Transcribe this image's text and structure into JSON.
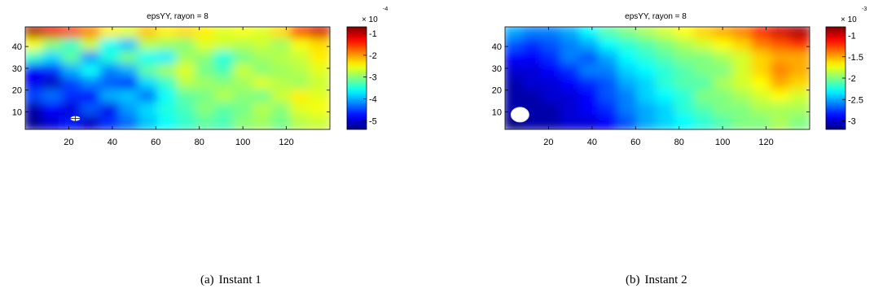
{
  "figure": {
    "captions": [
      {
        "letter": "(a)",
        "text": "Instant 1"
      },
      {
        "letter": "(b)",
        "text": "Instant 2"
      }
    ]
  },
  "chart_data": [
    {
      "type": "heatmap",
      "title": "epsYY, rayon = 8",
      "xlabel": "",
      "ylabel": "",
      "xlim": [
        0,
        140
      ],
      "ylim": [
        2,
        49
      ],
      "xticks": [
        20,
        40,
        60,
        80,
        100,
        120
      ],
      "yticks": [
        10,
        20,
        30,
        40
      ],
      "colormap": "jet",
      "colorbar": {
        "range": [
          -5.4,
          -0.7
        ],
        "ticks": [
          -1,
          -2,
          -3,
          -4,
          -5
        ],
        "tick_labels": [
          "-1",
          "-2",
          "-3",
          "-4",
          "-5"
        ],
        "multiplier": "× 10",
        "exponent": "-4"
      },
      "grid": [
        [
          -0.9,
          -1.2,
          -1.6,
          -1.9,
          -2.4,
          -2.6,
          -2.2,
          -2.4,
          -2.3,
          -2.4,
          -2.6,
          -2.5,
          -2.6,
          -2.3,
          -1.6,
          -1.1
        ],
        [
          -2.5,
          -3.0,
          -3.4,
          -2.7,
          -3.6,
          -3.9,
          -2.8,
          -2.9,
          -3.0,
          -2.6,
          -2.7,
          -2.8,
          -2.7,
          -2.9,
          -2.5,
          -2.3
        ],
        [
          -3.4,
          -3.8,
          -3.2,
          -4.1,
          -3.5,
          -3.1,
          -3.6,
          -3.7,
          -2.9,
          -3.0,
          -3.5,
          -3.1,
          -2.9,
          -2.8,
          -2.7,
          -2.4
        ],
        [
          -4.8,
          -4.6,
          -4.0,
          -3.6,
          -4.2,
          -4.0,
          -3.2,
          -2.9,
          -2.6,
          -3.1,
          -3.3,
          -2.7,
          -3.0,
          -2.9,
          -2.8,
          -2.6
        ],
        [
          -4.9,
          -5.1,
          -4.5,
          -4.2,
          -4.4,
          -4.6,
          -3.8,
          -3.4,
          -2.8,
          -2.9,
          -3.0,
          -2.9,
          -2.6,
          -2.8,
          -2.9,
          -2.7
        ],
        [
          -4.5,
          -4.3,
          -4.6,
          -4.8,
          -4.0,
          -3.9,
          -4.3,
          -3.6,
          -3.2,
          -3.1,
          -2.8,
          -3.0,
          -3.1,
          -2.7,
          -2.4,
          -2.6
        ],
        [
          -5.2,
          -4.8,
          -5.0,
          -4.4,
          -4.9,
          -4.1,
          -3.8,
          -3.5,
          -3.3,
          -3.0,
          -3.2,
          -3.1,
          -2.8,
          -3.0,
          -2.6,
          -2.5
        ],
        [
          -5.3,
          -5.0,
          -4.7,
          -5.1,
          -4.6,
          -4.3,
          -3.9,
          -3.6,
          -3.4,
          -3.2,
          -3.3,
          -3.0,
          -2.9,
          -3.1,
          -2.8,
          -2.7
        ]
      ],
      "marker": {
        "x": 23,
        "y": 7,
        "shape": "crosshair"
      }
    },
    {
      "type": "heatmap",
      "title": "epsYY, rayon = 8",
      "xlabel": "",
      "ylabel": "",
      "xlim": [
        0,
        140
      ],
      "ylim": [
        2,
        49
      ],
      "xticks": [
        20,
        40,
        60,
        80,
        100,
        120
      ],
      "yticks": [
        10,
        20,
        30,
        40
      ],
      "colormap": "jet",
      "colorbar": {
        "range": [
          -3.2,
          -0.8
        ],
        "ticks": [
          -1,
          -1.5,
          -2,
          -2.5,
          -3
        ],
        "tick_labels": [
          "-1",
          "-1.5",
          "-2",
          "-2.5",
          "-3"
        ],
        "multiplier": "× 10",
        "exponent": "-3"
      },
      "grid": [
        [
          -2.5,
          -2.6,
          -2.6,
          -2.5,
          -2.3,
          -2.1,
          -2.0,
          -1.9,
          -1.8,
          -1.7,
          -1.6,
          -1.5,
          -1.4,
          -1.2,
          -1.0,
          -0.9
        ],
        [
          -2.7,
          -2.8,
          -2.7,
          -2.6,
          -2.5,
          -2.3,
          -2.2,
          -2.1,
          -2.0,
          -1.9,
          -1.8,
          -1.7,
          -1.6,
          -1.4,
          -1.3,
          -1.2
        ],
        [
          -2.9,
          -2.9,
          -2.8,
          -2.6,
          -2.7,
          -2.5,
          -2.3,
          -2.2,
          -2.1,
          -2.0,
          -2.0,
          -1.9,
          -1.8,
          -1.6,
          -1.5,
          -1.5
        ],
        [
          -3.0,
          -3.0,
          -2.9,
          -2.8,
          -2.6,
          -2.6,
          -2.4,
          -2.3,
          -2.2,
          -2.1,
          -2.0,
          -2.0,
          -1.8,
          -1.6,
          -1.4,
          -1.5
        ],
        [
          -3.1,
          -3.0,
          -3.0,
          -2.9,
          -2.8,
          -2.7,
          -2.5,
          -2.4,
          -2.2,
          -2.1,
          -2.1,
          -1.9,
          -1.8,
          -1.7,
          -1.5,
          -1.6
        ],
        [
          -3.1,
          -3.1,
          -3.0,
          -3.0,
          -2.9,
          -2.7,
          -2.6,
          -2.4,
          -2.3,
          -2.2,
          -2.0,
          -2.0,
          -1.9,
          -1.8,
          -1.7,
          -1.8
        ],
        [
          -3.1,
          -3.1,
          -3.1,
          -3.0,
          -2.9,
          -2.8,
          -2.6,
          -2.5,
          -2.4,
          -2.2,
          -2.1,
          -2.0,
          -2.0,
          -1.9,
          -1.9,
          -1.9
        ],
        [
          -3.2,
          -3.1,
          -3.1,
          -3.0,
          -3.0,
          -2.9,
          -2.7,
          -2.5,
          -2.4,
          -2.3,
          -2.2,
          -2.1,
          -2.0,
          -2.0,
          -1.9,
          -2.0
        ]
      ],
      "marker": {
        "x": 5,
        "y": 8,
        "shape": "disk"
      }
    }
  ]
}
